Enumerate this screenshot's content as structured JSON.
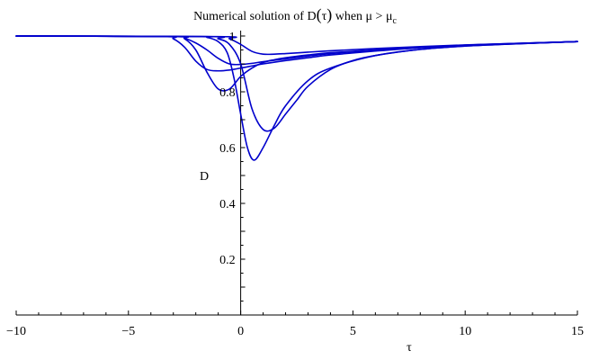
{
  "chart_data": {
    "type": "line",
    "title": {
      "prefix": "Numerical solution of ",
      "func": "D",
      "open": "(",
      "arg": "τ",
      "close": ")",
      "middle": " when ",
      "mu": "μ",
      "gt": " > ",
      "mu2": "μ",
      "sub": "c"
    },
    "xlabel": "τ",
    "ylabel": "D",
    "xlim": [
      -10,
      15
    ],
    "ylim": [
      0,
      1
    ],
    "xticks": [
      -10,
      -5,
      0,
      5,
      10,
      15
    ],
    "xtick_labels": [
      "−10",
      "−5",
      "0",
      "5",
      "10",
      "15"
    ],
    "yticks": [
      0.2,
      0.4,
      0.6,
      0.8,
      1
    ],
    "ytick_labels": [
      "0.2",
      "0.4",
      "0.6",
      "0.8",
      "1"
    ],
    "grid": false,
    "line_color": "#0000cc",
    "series": [
      {
        "x": [
          -10,
          -3,
          -2.5,
          -2,
          -1.5,
          -1,
          -0.5,
          0,
          0.5,
          1,
          1.5,
          2,
          3,
          4,
          6,
          8,
          10,
          12,
          15
        ],
        "y": [
          1,
          0.998,
          0.99,
          0.95,
          0.87,
          0.81,
          0.81,
          0.855,
          0.885,
          0.905,
          0.915,
          0.922,
          0.932,
          0.94,
          0.95,
          0.96,
          0.967,
          0.972,
          0.98
        ]
      },
      {
        "x": [
          -10,
          -3.5,
          -3,
          -2.5,
          -2,
          -1.5,
          -1,
          -0.5,
          0,
          1,
          2,
          3,
          4,
          6,
          8,
          10,
          12,
          15
        ],
        "y": [
          1,
          0.998,
          0.99,
          0.96,
          0.91,
          0.88,
          0.875,
          0.878,
          0.885,
          0.9,
          0.912,
          0.922,
          0.932,
          0.946,
          0.958,
          0.966,
          0.972,
          0.98
        ]
      },
      {
        "x": [
          -10,
          -3,
          -2.5,
          -2,
          -1.5,
          -1,
          -0.5,
          0,
          0.5,
          1,
          2,
          3,
          4,
          6,
          8,
          10,
          12,
          15
        ],
        "y": [
          1,
          0.998,
          0.992,
          0.975,
          0.95,
          0.92,
          0.9,
          0.898,
          0.902,
          0.908,
          0.918,
          0.928,
          0.937,
          0.95,
          0.96,
          0.967,
          0.973,
          0.98
        ]
      },
      {
        "x": [
          -10,
          -2,
          -1.5,
          -1,
          -0.6,
          -0.3,
          0,
          0.3,
          0.6,
          1,
          1.5,
          2,
          3,
          4,
          6,
          8,
          10,
          12,
          15
        ],
        "y": [
          1,
          0.998,
          0.995,
          0.98,
          0.94,
          0.85,
          0.72,
          0.6,
          0.555,
          0.6,
          0.68,
          0.75,
          0.84,
          0.885,
          0.93,
          0.952,
          0.964,
          0.971,
          0.98
        ]
      },
      {
        "x": [
          -10,
          -1.5,
          -1,
          -0.5,
          0,
          0.5,
          1,
          1.5,
          2,
          2.5,
          3,
          4,
          5,
          6,
          8,
          10,
          12,
          15
        ],
        "y": [
          1,
          0.998,
          0.99,
          0.97,
          0.9,
          0.74,
          0.665,
          0.67,
          0.72,
          0.77,
          0.82,
          0.88,
          0.912,
          0.93,
          0.952,
          0.964,
          0.971,
          0.98
        ]
      },
      {
        "x": [
          -10,
          -1,
          -0.5,
          0,
          0.5,
          1,
          1.5,
          2,
          3,
          4,
          6,
          8,
          10,
          12,
          15
        ],
        "y": [
          1,
          0.998,
          0.99,
          0.97,
          0.945,
          0.935,
          0.935,
          0.937,
          0.942,
          0.947,
          0.955,
          0.962,
          0.968,
          0.973,
          0.98
        ]
      }
    ]
  }
}
